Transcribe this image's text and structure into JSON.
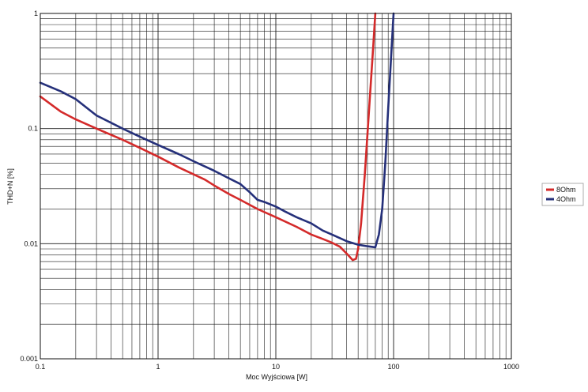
{
  "chart_data": {
    "type": "line",
    "title": "",
    "xlabel": "Moc Wyjściowa [W]",
    "ylabel": "THD+N [%]",
    "xscale": "log",
    "yscale": "log",
    "xlim": [
      0.1,
      1000
    ],
    "ylim": [
      0.001,
      1
    ],
    "grid": true,
    "legend_position": "right",
    "x_ticks": [
      0.1,
      1,
      10,
      100,
      1000
    ],
    "x_tick_labels": [
      "0.1",
      "1",
      "10",
      "100",
      "1000"
    ],
    "y_ticks": [
      0.001,
      0.01,
      0.1,
      1
    ],
    "y_tick_labels": [
      "0.001",
      "0.01",
      "0.1",
      "1"
    ],
    "series": [
      {
        "name": "8Ohm",
        "color": "#d42a2a",
        "points": [
          [
            0.1,
            0.19
          ],
          [
            0.15,
            0.14
          ],
          [
            0.2,
            0.12
          ],
          [
            0.3,
            0.1
          ],
          [
            0.5,
            0.08
          ],
          [
            0.7,
            0.068
          ],
          [
            1,
            0.057
          ],
          [
            1.5,
            0.046
          ],
          [
            2,
            0.04
          ],
          [
            2.5,
            0.036
          ],
          [
            3,
            0.032
          ],
          [
            4,
            0.027
          ],
          [
            5,
            0.024
          ],
          [
            7,
            0.02
          ],
          [
            10,
            0.017
          ],
          [
            15,
            0.014
          ],
          [
            20,
            0.012
          ],
          [
            25,
            0.011
          ],
          [
            30,
            0.0102
          ],
          [
            35,
            0.0094
          ],
          [
            40,
            0.0082
          ],
          [
            45,
            0.0072
          ],
          [
            48,
            0.0074
          ],
          [
            50,
            0.009
          ],
          [
            53,
            0.015
          ],
          [
            57,
            0.04
          ],
          [
            62,
            0.15
          ],
          [
            67,
            0.5
          ],
          [
            70,
            1.0
          ]
        ]
      },
      {
        "name": "4Ohm",
        "color": "#25307a",
        "points": [
          [
            0.1,
            0.25
          ],
          [
            0.15,
            0.21
          ],
          [
            0.2,
            0.18
          ],
          [
            0.3,
            0.13
          ],
          [
            0.5,
            0.1
          ],
          [
            0.7,
            0.085
          ],
          [
            1,
            0.072
          ],
          [
            1.5,
            0.06
          ],
          [
            2,
            0.052
          ],
          [
            3,
            0.043
          ],
          [
            4,
            0.037
          ],
          [
            5,
            0.033
          ],
          [
            6,
            0.028
          ],
          [
            7,
            0.024
          ],
          [
            8,
            0.023
          ],
          [
            10,
            0.021
          ],
          [
            12,
            0.019
          ],
          [
            15,
            0.017
          ],
          [
            20,
            0.015
          ],
          [
            25,
            0.013
          ],
          [
            30,
            0.012
          ],
          [
            40,
            0.0105
          ],
          [
            50,
            0.0098
          ],
          [
            60,
            0.0095
          ],
          [
            70,
            0.0093
          ],
          [
            75,
            0.012
          ],
          [
            80,
            0.02
          ],
          [
            85,
            0.05
          ],
          [
            90,
            0.15
          ],
          [
            95,
            0.4
          ],
          [
            100,
            1.0
          ]
        ]
      }
    ]
  }
}
